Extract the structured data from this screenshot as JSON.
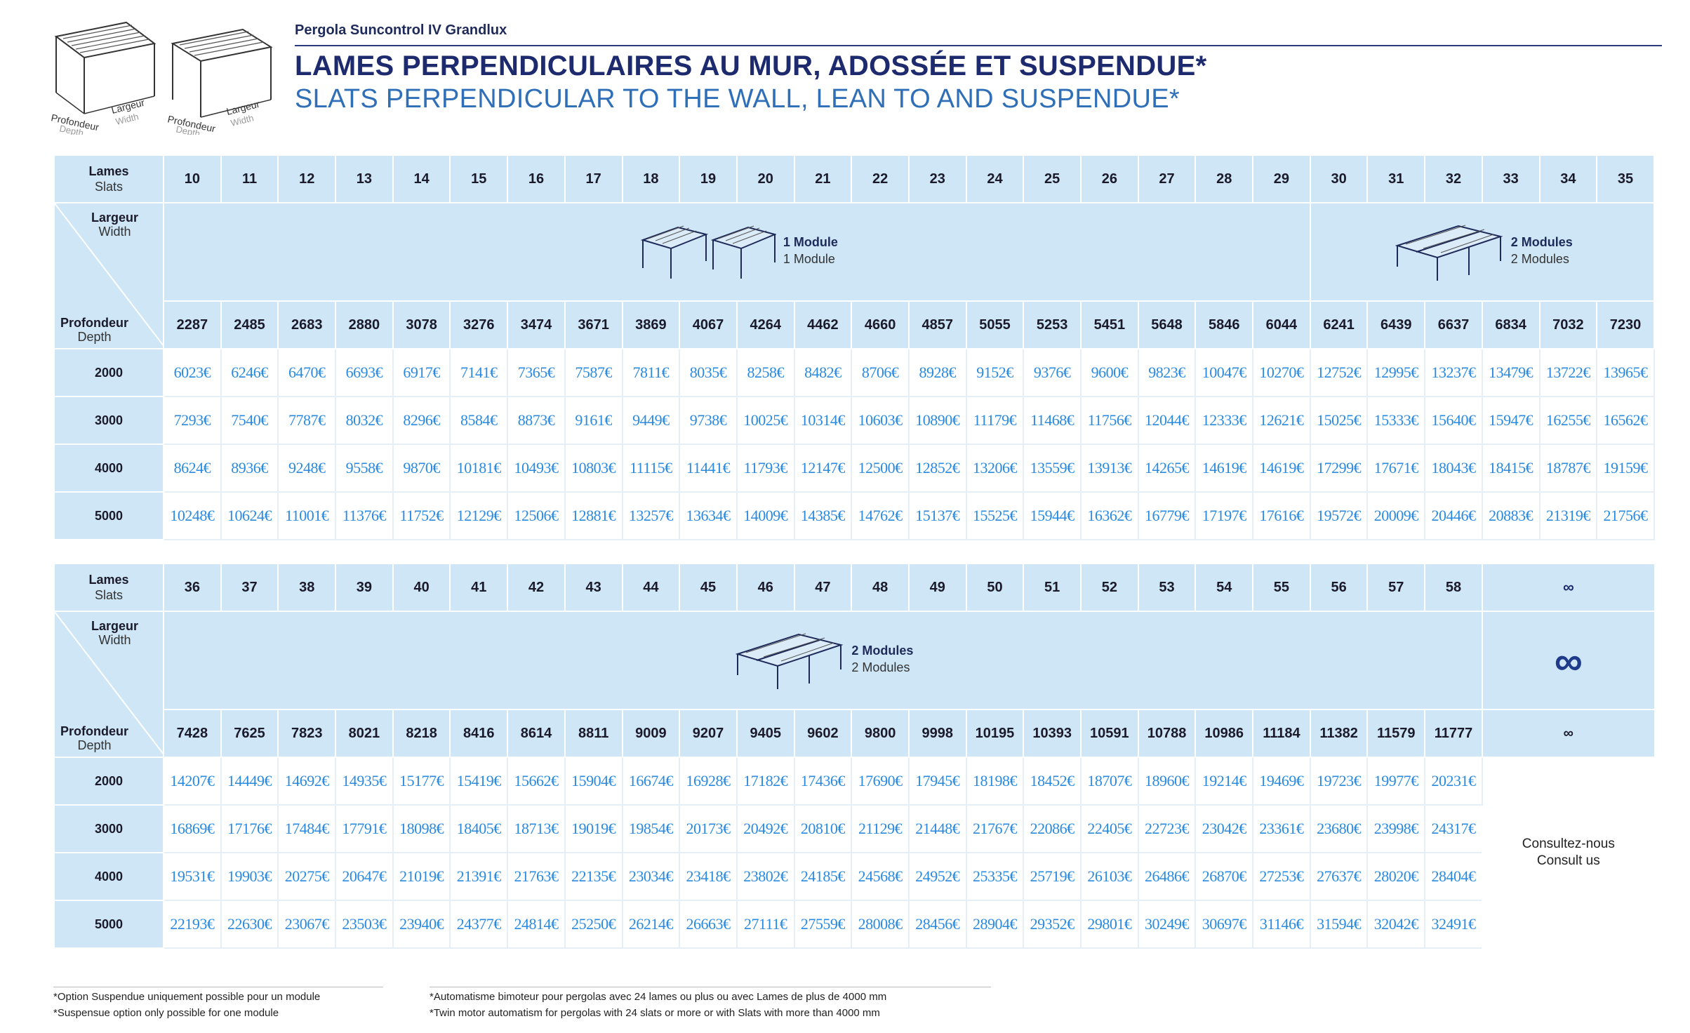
{
  "header": {
    "product": "Pergola Suncontrol IV Grandlux",
    "title_fr": "LAMES PERPENDICULAIRES AU MUR, ADOSSÉE ET SUSPENDUE*",
    "title_en": "SLATS PERPENDICULAR TO THE WALL, LEAN TO AND SUSPENDUE*",
    "diagram_labels": {
      "depth_fr": "Profondeur",
      "depth_en": "Depth",
      "width_fr": "Largeur",
      "width_en": "Width"
    }
  },
  "labels": {
    "slats_fr": "Lames",
    "slats_en": "Slats",
    "width_fr": "Largeur",
    "width_en": "Width",
    "depth_fr": "Profondeur",
    "depth_en": "Depth",
    "one_module_fr": "1 Module",
    "one_module_en": "1 Module",
    "two_modules_fr": "2 Modules",
    "two_modules_en": "2 Modules",
    "infinity": "∞",
    "consult_fr": "Consultez-nous",
    "consult_en": "Consult us"
  },
  "table1": {
    "slats": [
      "10",
      "11",
      "12",
      "13",
      "14",
      "15",
      "16",
      "17",
      "18",
      "19",
      "20",
      "21",
      "22",
      "23",
      "24",
      "25",
      "26",
      "27",
      "28",
      "29",
      "30",
      "31",
      "32",
      "33",
      "34",
      "35"
    ],
    "widths": [
      "2287",
      "2485",
      "2683",
      "2880",
      "3078",
      "3276",
      "3474",
      "3671",
      "3869",
      "4067",
      "4264",
      "4462",
      "4660",
      "4857",
      "5055",
      "5253",
      "5451",
      "5648",
      "5846",
      "6044",
      "6241",
      "6439",
      "6637",
      "6834",
      "7032",
      "7230"
    ],
    "rows": [
      {
        "depth": "2000",
        "prices": [
          "6023€",
          "6246€",
          "6470€",
          "6693€",
          "6917€",
          "7141€",
          "7365€",
          "7587€",
          "7811€",
          "8035€",
          "8258€",
          "8482€",
          "8706€",
          "8928€",
          "9152€",
          "9376€",
          "9600€",
          "9823€",
          "10047€",
          "10270€",
          "12752€",
          "12995€",
          "13237€",
          "13479€",
          "13722€",
          "13965€"
        ]
      },
      {
        "depth": "3000",
        "prices": [
          "7293€",
          "7540€",
          "7787€",
          "8032€",
          "8296€",
          "8584€",
          "8873€",
          "9161€",
          "9449€",
          "9738€",
          "10025€",
          "10314€",
          "10603€",
          "10890€",
          "11179€",
          "11468€",
          "11756€",
          "12044€",
          "12333€",
          "12621€",
          "15025€",
          "15333€",
          "15640€",
          "15947€",
          "16255€",
          "16562€"
        ]
      },
      {
        "depth": "4000",
        "prices": [
          "8624€",
          "8936€",
          "9248€",
          "9558€",
          "9870€",
          "10181€",
          "10493€",
          "10803€",
          "11115€",
          "11441€",
          "11793€",
          "12147€",
          "12500€",
          "12852€",
          "13206€",
          "13559€",
          "13913€",
          "14265€",
          "14619€",
          "14619€",
          "17299€",
          "17671€",
          "18043€",
          "18415€",
          "18787€",
          "19159€"
        ]
      },
      {
        "depth": "5000",
        "prices": [
          "10248€",
          "10624€",
          "11001€",
          "11376€",
          "11752€",
          "12129€",
          "12506€",
          "12881€",
          "13257€",
          "13634€",
          "14009€",
          "14385€",
          "14762€",
          "15137€",
          "15525€",
          "15944€",
          "16362€",
          "16779€",
          "17197€",
          "17616€",
          "19572€",
          "20009€",
          "20446€",
          "20883€",
          "21319€",
          "21756€"
        ]
      }
    ]
  },
  "table2": {
    "slats": [
      "36",
      "37",
      "38",
      "39",
      "40",
      "41",
      "42",
      "43",
      "44",
      "45",
      "46",
      "47",
      "48",
      "49",
      "50",
      "51",
      "52",
      "53",
      "54",
      "55",
      "56",
      "57",
      "58"
    ],
    "widths": [
      "7428",
      "7625",
      "7823",
      "8021",
      "8218",
      "8416",
      "8614",
      "8811",
      "9009",
      "9207",
      "9405",
      "9602",
      "9800",
      "9998",
      "10195",
      "10393",
      "10591",
      "10788",
      "10986",
      "11184",
      "11382",
      "11579",
      "11777"
    ],
    "rows": [
      {
        "depth": "2000",
        "prices": [
          "14207€",
          "14449€",
          "14692€",
          "14935€",
          "15177€",
          "15419€",
          "15662€",
          "15904€",
          "16674€",
          "16928€",
          "17182€",
          "17436€",
          "17690€",
          "17945€",
          "18198€",
          "18452€",
          "18707€",
          "18960€",
          "19214€",
          "19469€",
          "19723€",
          "19977€",
          "20231€"
        ]
      },
      {
        "depth": "3000",
        "prices": [
          "16869€",
          "17176€",
          "17484€",
          "17791€",
          "18098€",
          "18405€",
          "18713€",
          "19019€",
          "19854€",
          "20173€",
          "20492€",
          "20810€",
          "21129€",
          "21448€",
          "21767€",
          "22086€",
          "22405€",
          "22723€",
          "23042€",
          "23361€",
          "23680€",
          "23998€",
          "24317€"
        ]
      },
      {
        "depth": "4000",
        "prices": [
          "19531€",
          "19903€",
          "20275€",
          "20647€",
          "21019€",
          "21391€",
          "21763€",
          "22135€",
          "23034€",
          "23418€",
          "23802€",
          "24185€",
          "24568€",
          "24952€",
          "25335€",
          "25719€",
          "26103€",
          "26486€",
          "26870€",
          "27253€",
          "27637€",
          "28020€",
          "28404€"
        ]
      },
      {
        "depth": "5000",
        "prices": [
          "22193€",
          "22630€",
          "23067€",
          "23503€",
          "23940€",
          "24377€",
          "24814€",
          "25250€",
          "26214€",
          "26663€",
          "27111€",
          "27559€",
          "28008€",
          "28456€",
          "28904€",
          "29352€",
          "29801€",
          "30249€",
          "30697€",
          "31146€",
          "31594€",
          "32042€",
          "32491€"
        ]
      }
    ]
  },
  "footnotes": {
    "left_fr": "*Option Suspendue uniquement possible pour un module",
    "left_en": "*Suspensue option only possible for one module",
    "right_fr": "*Automatisme bimoteur pour pergolas avec 24 lames ou plus ou avec Lames de plus de 4000 mm",
    "right_en": "*Twin motor automatism for pergolas with 24 slats or more or with Slats with more than 4000 mm"
  },
  "colors": {
    "header_bg": "#cfe6f6",
    "price_text": "#2a8ae0",
    "title_dark": "#1e2a6e",
    "title_light": "#2f6fb8"
  }
}
